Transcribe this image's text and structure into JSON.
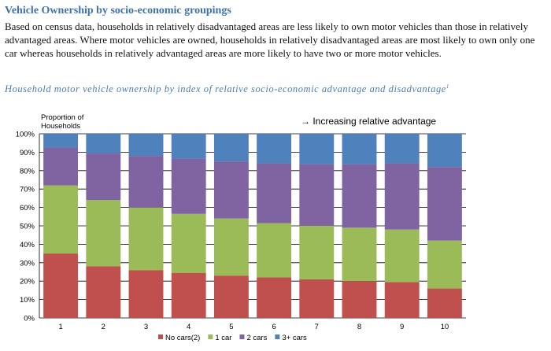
{
  "page": {
    "heading": "Vehicle Ownership by socio-economic groupings",
    "paragraph": "Based on census data, households in relatively disadvantaged areas are less likely to own motor vehicles than those in relatively advantaged areas. Where motor vehicles are owned, households in relatively disadvantaged areas are most likely to own only one car whereas households in relatively advantaged areas are more likely to have two or more motor vehicles.",
    "chart_caption": "Household motor vehicle ownership by index of relative socio-economic advantage and disadvantage",
    "chart_caption_footnote": "1"
  },
  "chart_data": {
    "type": "bar",
    "stacked": true,
    "ylabel": "Proportion of Households",
    "annotation": "→  Increasing relative advantage",
    "categories": [
      "1",
      "2",
      "3",
      "4",
      "5",
      "6",
      "7",
      "8",
      "9",
      "10"
    ],
    "yticks": [
      "0%",
      "10%",
      "20%",
      "30%",
      "40%",
      "50%",
      "60%",
      "70%",
      "80%",
      "90%",
      "100%"
    ],
    "ylim": [
      0,
      100
    ],
    "grid": true,
    "legend_position": "bottom",
    "series": [
      {
        "name": "No cars(2)",
        "color": "#c0504d",
        "values": [
          35,
          28,
          26,
          24.5,
          23,
          22,
          21,
          20,
          19.5,
          16
        ]
      },
      {
        "name": "1 car",
        "color": "#9bbb59",
        "values": [
          37,
          36,
          34,
          32,
          31,
          29.5,
          29,
          29,
          28.5,
          26
        ]
      },
      {
        "name": "2 cars",
        "color": "#8064a2",
        "values": [
          20.5,
          25.5,
          28,
          30,
          31,
          32.5,
          33.5,
          34.5,
          36,
          40
        ]
      },
      {
        "name": "3+ cars",
        "color": "#4f81bd",
        "values": [
          7.5,
          10.5,
          12,
          13.5,
          15,
          16,
          16.5,
          16.5,
          16,
          18
        ]
      }
    ]
  }
}
